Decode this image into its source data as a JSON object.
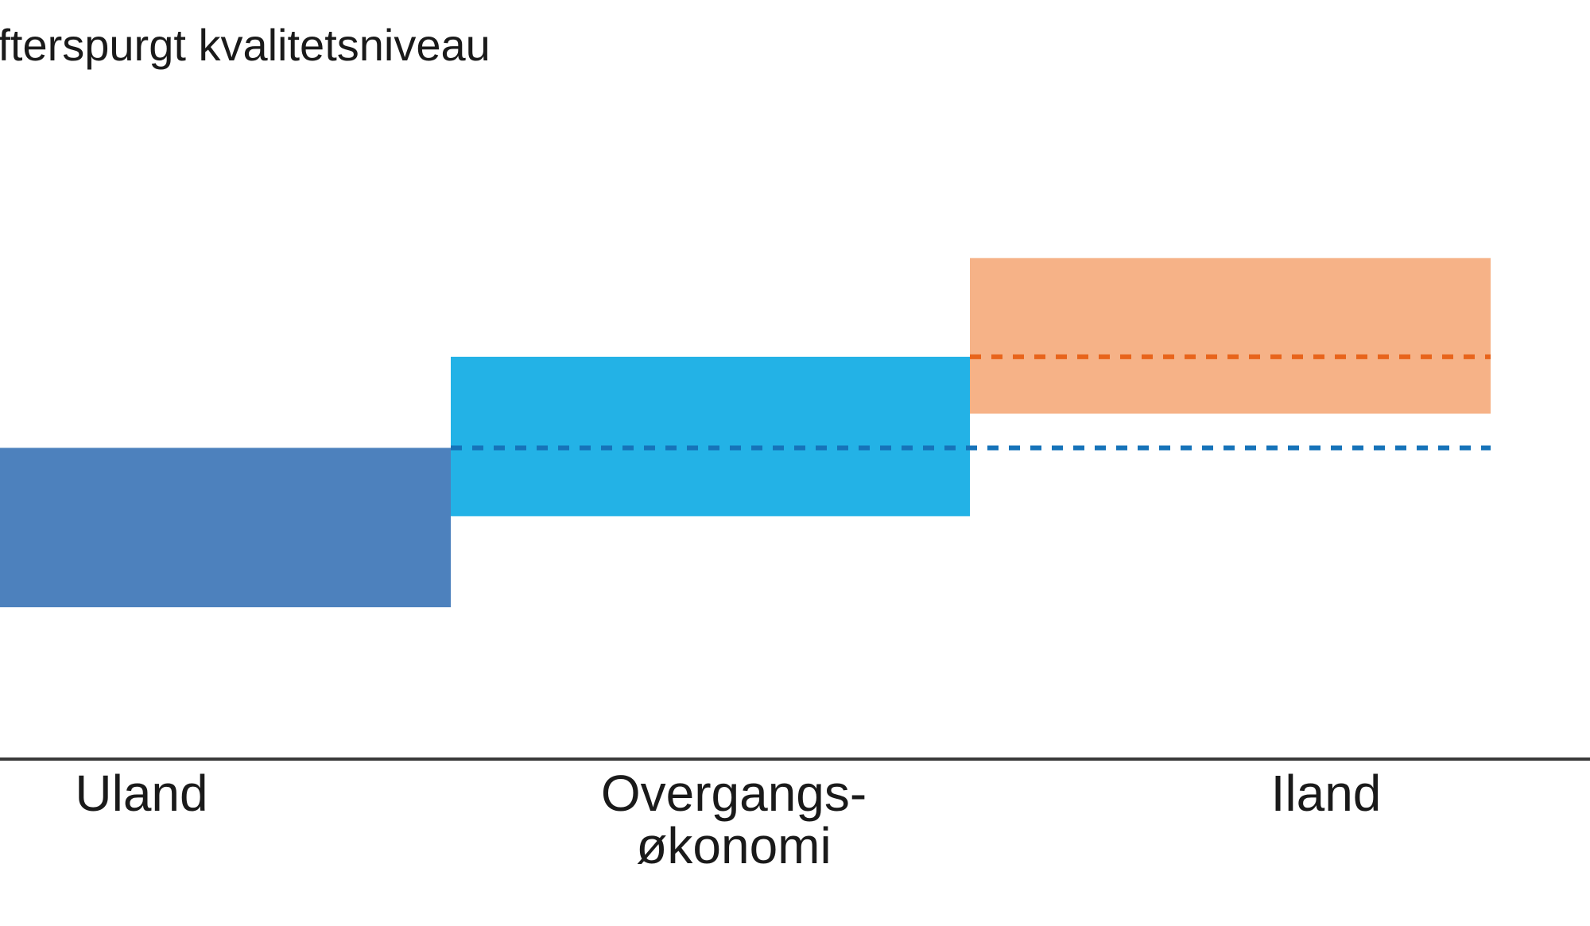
{
  "chart_data": {
    "type": "bar",
    "title": "",
    "ylabel": "Efterspurgt kvalitetsniveau",
    "xlabel": "",
    "grid": false,
    "legend": "none",
    "categories": [
      {
        "lines": [
          "Uland"
        ]
      },
      {
        "lines": [
          "Overgangs-",
          "økonomi"
        ]
      },
      {
        "lines": [
          "Iland"
        ]
      }
    ],
    "ranges": [
      {
        "category": "Uland",
        "low": 2.0,
        "high": 4.1,
        "color": "#4d81bd"
      },
      {
        "category": "Overgangs-økonomi",
        "low": 3.2,
        "high": 5.3,
        "color": "#23b2e6"
      },
      {
        "category": "Iland",
        "low": 4.55,
        "high": 6.6,
        "color": "#f6b287"
      }
    ],
    "reference_lines": [
      {
        "from_category": 1,
        "to_category": 2,
        "value": 4.1,
        "color": "#1673b9",
        "style": "dashed"
      },
      {
        "from_category": 2,
        "to_category": 2,
        "value": 5.3,
        "color": "#e8641b",
        "style": "dashed"
      }
    ],
    "ylim": [
      0,
      10
    ]
  }
}
